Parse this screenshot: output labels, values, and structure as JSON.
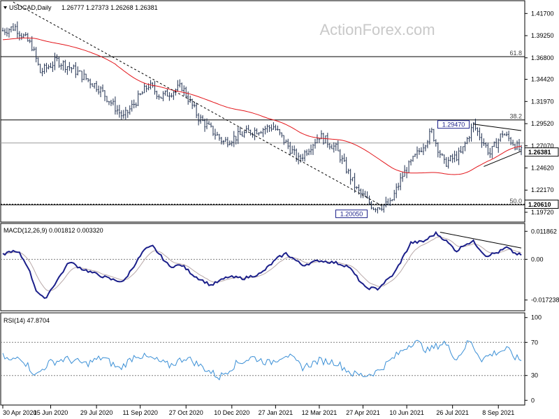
{
  "colors": {
    "background": "#ffffff",
    "frame": "#000000",
    "candle": "#1f2f4f",
    "ma": "#e3161b",
    "macd_main": "#1b1f8a",
    "macd_signal": "#b8a8a8",
    "rsi": "#3a8fd6",
    "dotted": "#7f7f7f",
    "price_tag": "#000000"
  },
  "header": {
    "symbol_tf": "USDCAD,Daily",
    "ohlc": "1.26777 1.27373 1.26268 1.26381"
  },
  "watermark": "ActionForex.com",
  "chart_data": [
    {
      "type": "candlestick",
      "id": "price",
      "ylim": [
        1.1879,
        1.4296
      ],
      "ytick_labels": [
        "1.41700",
        "1.39250",
        "1.36800",
        "1.34420",
        "1.31970",
        "1.29520",
        "1.27070",
        "1.24620",
        "1.22170",
        "1.19720"
      ],
      "ytick_values": [
        1.417,
        1.3925,
        1.368,
        1.3442,
        1.3197,
        1.2952,
        1.2707,
        1.2462,
        1.2217,
        1.1972
      ],
      "fib_levels": [
        {
          "label": "61.8",
          "value": 1.3693
        },
        {
          "label": "38.2",
          "value": 1.2993
        },
        {
          "label": "50.0",
          "value": 1.2055
        }
      ],
      "current_line": 1.2738,
      "current_price": "1.26381",
      "current_value": 1.2638,
      "support_price": "1.20610",
      "support_value": 1.2061,
      "annotations": [
        {
          "text": "1.29470",
          "value": 1.2947,
          "bar": 225
        },
        {
          "text": "1.20050",
          "value": 1.2005,
          "bar": 173
        }
      ],
      "trendline_long": {
        "from": [
          5,
          1.4296
        ],
        "to": [
          182,
          1.2045
        ]
      },
      "triangle_upper": {
        "from": [
          226,
          1.2947
        ],
        "to": [
          249,
          1.2875
        ]
      },
      "triangle_lower": {
        "from": [
          231,
          1.2478
        ],
        "to": [
          249,
          1.2648
        ]
      },
      "ma_period": 55,
      "series_shape": [
        [
          0,
          1.398
        ],
        [
          6,
          1.402
        ],
        [
          14,
          1.381
        ],
        [
          18,
          1.352
        ],
        [
          26,
          1.365
        ],
        [
          34,
          1.355
        ],
        [
          46,
          1.335
        ],
        [
          58,
          1.302
        ],
        [
          70,
          1.338
        ],
        [
          76,
          1.325
        ],
        [
          86,
          1.336
        ],
        [
          94,
          1.302
        ],
        [
          106,
          1.275
        ],
        [
          118,
          1.286
        ],
        [
          130,
          1.292
        ],
        [
          142,
          1.255
        ],
        [
          152,
          1.282
        ],
        [
          160,
          1.268
        ],
        [
          170,
          1.222
        ],
        [
          178,
          1.203
        ],
        [
          186,
          1.206
        ],
        [
          192,
          1.238
        ],
        [
          200,
          1.265
        ],
        [
          206,
          1.286
        ],
        [
          212,
          1.251
        ],
        [
          220,
          1.262
        ],
        [
          226,
          1.294
        ],
        [
          234,
          1.262
        ],
        [
          240,
          1.285
        ],
        [
          246,
          1.272
        ],
        [
          249,
          1.2638
        ]
      ]
    },
    {
      "type": "line",
      "id": "macd",
      "title": "MACD(12,26,9) 0.001812 0.003320",
      "ylim": [
        -0.0212,
        0.0146
      ],
      "ytick_labels": [
        "0.011862",
        "0.00",
        "-0.017238"
      ],
      "ytick_values": [
        0.011862,
        0.0,
        -0.017238
      ],
      "trendline": {
        "from": [
          210,
          0.0115
        ],
        "to": [
          249,
          0.0048
        ]
      },
      "series_shape": [
        [
          0,
          0.002
        ],
        [
          4,
          0.0035
        ],
        [
          8,
          0.0025
        ],
        [
          12,
          -0.003
        ],
        [
          16,
          -0.013
        ],
        [
          20,
          -0.017
        ],
        [
          26,
          -0.009
        ],
        [
          32,
          -0.001
        ],
        [
          38,
          -0.004
        ],
        [
          44,
          -0.006
        ],
        [
          52,
          -0.0085
        ],
        [
          58,
          -0.0095
        ],
        [
          62,
          -0.004
        ],
        [
          68,
          0.004
        ],
        [
          72,
          0.0055
        ],
        [
          80,
          -0.003
        ],
        [
          86,
          -0.0025
        ],
        [
          92,
          -0.007
        ],
        [
          100,
          -0.011
        ],
        [
          108,
          -0.0075
        ],
        [
          116,
          -0.008
        ],
        [
          124,
          -0.006
        ],
        [
          132,
          0.0005
        ],
        [
          136,
          0.0025
        ],
        [
          144,
          -0.0025
        ],
        [
          152,
          -0.0005
        ],
        [
          160,
          -0.0015
        ],
        [
          166,
          -0.003
        ],
        [
          174,
          -0.012
        ],
        [
          180,
          -0.0125
        ],
        [
          188,
          -0.006
        ],
        [
          196,
          0.007
        ],
        [
          202,
          0.0075
        ],
        [
          208,
          0.011
        ],
        [
          212,
          0.0085
        ],
        [
          218,
          0.0035
        ],
        [
          222,
          0.0065
        ],
        [
          226,
          0.0075
        ],
        [
          232,
          0.0015
        ],
        [
          238,
          0.003
        ],
        [
          242,
          0.005
        ],
        [
          246,
          0.0025
        ],
        [
          249,
          0.0018
        ]
      ]
    },
    {
      "type": "line",
      "id": "rsi",
      "title": "RSI(14) 47.8704",
      "ylim": [
        -4,
        104
      ],
      "ytick_labels": [
        "100",
        "70",
        "30",
        "0"
      ],
      "ytick_values": [
        100,
        70,
        30,
        0
      ],
      "levels": [
        70,
        30
      ],
      "series_shape": [
        [
          0,
          53
        ],
        [
          4,
          47
        ],
        [
          8,
          54
        ],
        [
          12,
          42
        ],
        [
          16,
          30
        ],
        [
          22,
          45
        ],
        [
          30,
          50
        ],
        [
          40,
          44
        ],
        [
          48,
          52
        ],
        [
          56,
          38
        ],
        [
          64,
          55
        ],
        [
          72,
          50
        ],
        [
          80,
          42
        ],
        [
          88,
          52
        ],
        [
          96,
          40
        ],
        [
          104,
          28
        ],
        [
          112,
          44
        ],
        [
          120,
          52
        ],
        [
          128,
          45
        ],
        [
          136,
          56
        ],
        [
          144,
          40
        ],
        [
          152,
          48
        ],
        [
          160,
          46
        ],
        [
          168,
          32
        ],
        [
          174,
          30
        ],
        [
          180,
          35
        ],
        [
          188,
          52
        ],
        [
          194,
          65
        ],
        [
          198,
          72
        ],
        [
          204,
          60
        ],
        [
          212,
          70
        ],
        [
          218,
          50
        ],
        [
          224,
          72
        ],
        [
          230,
          50
        ],
        [
          236,
          57
        ],
        [
          242,
          62
        ],
        [
          246,
          52
        ],
        [
          249,
          47.87
        ]
      ]
    }
  ],
  "x_axis": {
    "bar_count": 250,
    "labels": [
      {
        "text": "30 Apr 2020",
        "bar": 0
      },
      {
        "text": "15 Jun 2020",
        "bar": 23
      },
      {
        "text": "29 Jul 2020",
        "bar": 45
      },
      {
        "text": "11 Sep 2020",
        "bar": 66
      },
      {
        "text": "27 Oct 2020",
        "bar": 88
      },
      {
        "text": "10 Dec 2020",
        "bar": 110
      },
      {
        "text": "27 Jan 2021",
        "bar": 131
      },
      {
        "text": "12 Mar 2021",
        "bar": 152
      },
      {
        "text": "27 Apr 2021",
        "bar": 173
      },
      {
        "text": "10 Jun 2021",
        "bar": 194
      },
      {
        "text": "26 Jul 2021",
        "bar": 216
      },
      {
        "text": "8 Sep 2021",
        "bar": 238
      }
    ]
  }
}
